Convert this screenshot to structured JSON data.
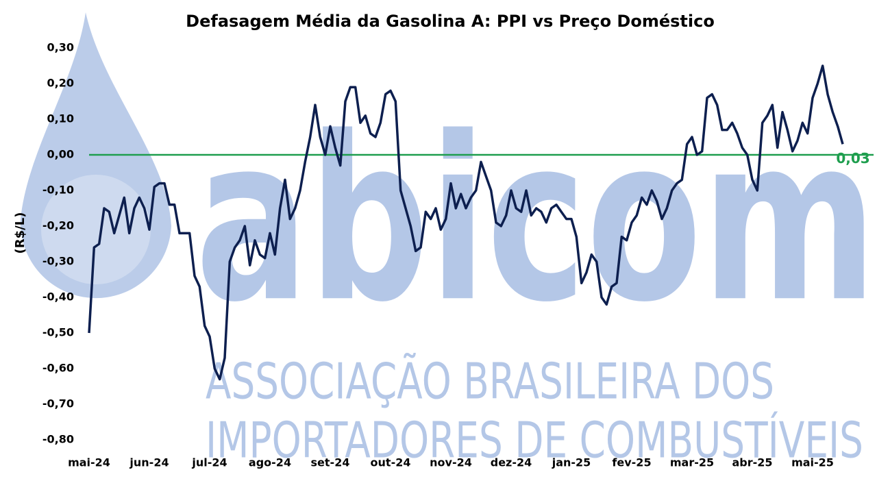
{
  "chart_data": {
    "type": "line",
    "title": "Defasagem Média da Gasolina A: PPI vs Preço Doméstico",
    "y_label": "(R$/L)",
    "watermark": {
      "logo": "abicom",
      "lines": [
        "ASSOCIAÇÃO BRASILEIRA DOS",
        "IMPORTADORES DE COMBUSTÍVEIS"
      ]
    },
    "categories": [
      "mai-24",
      null,
      null,
      null,
      null,
      null,
      null,
      null,
      null,
      null,
      null,
      null,
      "jun-24",
      null,
      null,
      null,
      null,
      null,
      null,
      null,
      null,
      null,
      null,
      null,
      "jul-24",
      null,
      null,
      null,
      null,
      null,
      null,
      null,
      null,
      null,
      null,
      null,
      "ago-24",
      null,
      null,
      null,
      null,
      null,
      null,
      null,
      null,
      null,
      null,
      null,
      "set-24",
      null,
      null,
      null,
      null,
      null,
      null,
      null,
      null,
      null,
      null,
      null,
      "out-24",
      null,
      null,
      null,
      null,
      null,
      null,
      null,
      null,
      null,
      null,
      null,
      "nov-24",
      null,
      null,
      null,
      null,
      null,
      null,
      null,
      null,
      null,
      null,
      null,
      "dez-24",
      null,
      null,
      null,
      null,
      null,
      null,
      null,
      null,
      null,
      null,
      null,
      "jan-25",
      null,
      null,
      null,
      null,
      null,
      null,
      null,
      null,
      null,
      null,
      null,
      "fev-25",
      null,
      null,
      null,
      null,
      null,
      null,
      null,
      null,
      null,
      null,
      null,
      "mar-25",
      null,
      null,
      null,
      null,
      null,
      null,
      null,
      null,
      null,
      null,
      null,
      "abr-25",
      null,
      null,
      null,
      null,
      null,
      null,
      null,
      null,
      null,
      null,
      null,
      "mai-25",
      null,
      null,
      null,
      null,
      null,
      null
    ],
    "series": [
      {
        "name": "Defasagem Média",
        "color": "#0d1f4f",
        "values": [
          -0.5,
          -0.26,
          -0.25,
          -0.15,
          -0.16,
          -0.22,
          -0.17,
          -0.12,
          -0.22,
          -0.15,
          -0.12,
          -0.15,
          -0.21,
          -0.09,
          -0.08,
          -0.08,
          -0.14,
          -0.14,
          -0.22,
          -0.22,
          -0.22,
          -0.34,
          -0.37,
          -0.48,
          -0.51,
          -0.6,
          -0.63,
          -0.57,
          -0.3,
          -0.26,
          -0.24,
          -0.2,
          -0.31,
          -0.24,
          -0.28,
          -0.29,
          -0.22,
          -0.28,
          -0.15,
          -0.07,
          -0.18,
          -0.15,
          -0.1,
          -0.02,
          0.05,
          0.14,
          0.05,
          0.0,
          0.08,
          0.02,
          -0.03,
          0.15,
          0.19,
          0.19,
          0.09,
          0.11,
          0.06,
          0.05,
          0.09,
          0.17,
          0.18,
          0.15,
          -0.1,
          -0.15,
          -0.2,
          -0.27,
          -0.26,
          -0.16,
          -0.18,
          -0.15,
          -0.21,
          -0.18,
          -0.08,
          -0.15,
          -0.11,
          -0.15,
          -0.12,
          -0.1,
          -0.02,
          -0.06,
          -0.1,
          -0.19,
          -0.2,
          -0.17,
          -0.1,
          -0.15,
          -0.16,
          -0.1,
          -0.17,
          -0.15,
          -0.16,
          -0.19,
          -0.15,
          -0.14,
          -0.16,
          -0.18,
          -0.18,
          -0.23,
          -0.36,
          -0.33,
          -0.28,
          -0.3,
          -0.4,
          -0.42,
          -0.37,
          -0.36,
          -0.23,
          -0.24,
          -0.19,
          -0.17,
          -0.12,
          -0.14,
          -0.1,
          -0.13,
          -0.18,
          -0.15,
          -0.1,
          -0.08,
          -0.07,
          0.03,
          0.05,
          0.0,
          0.01,
          0.16,
          0.17,
          0.14,
          0.07,
          0.07,
          0.09,
          0.06,
          0.02,
          0.0,
          -0.07,
          -0.1,
          0.09,
          0.11,
          0.14,
          0.02,
          0.12,
          0.07,
          0.01,
          0.04,
          0.09,
          0.06,
          0.16,
          0.2,
          0.25,
          0.17,
          0.12,
          0.08,
          0.03
        ]
      }
    ],
    "ylim": [
      -0.8,
      0.3
    ],
    "yticks": [
      {
        "value": 0.3,
        "label": "0,30"
      },
      {
        "value": 0.2,
        "label": "0,20"
      },
      {
        "value": 0.1,
        "label": "0,10"
      },
      {
        "value": 0,
        "label": "0,00"
      },
      {
        "value": -0.1,
        "label": "-0,10"
      },
      {
        "value": -0.2,
        "label": "-0,20"
      },
      {
        "value": -0.3,
        "label": "-0,30"
      },
      {
        "value": -0.4,
        "label": "-0,40"
      },
      {
        "value": -0.5,
        "label": "-0,50"
      },
      {
        "value": -0.6,
        "label": "-0,60"
      },
      {
        "value": -0.7,
        "label": "-0,70"
      },
      {
        "value": -0.8,
        "label": "-0,80"
      }
    ],
    "grid": false,
    "reference_line": {
      "value": 0,
      "color": "#1e9e4e"
    },
    "annotations": [
      {
        "label": "0,03",
        "value": 0.03,
        "color": "#1e9e4e"
      }
    ]
  }
}
